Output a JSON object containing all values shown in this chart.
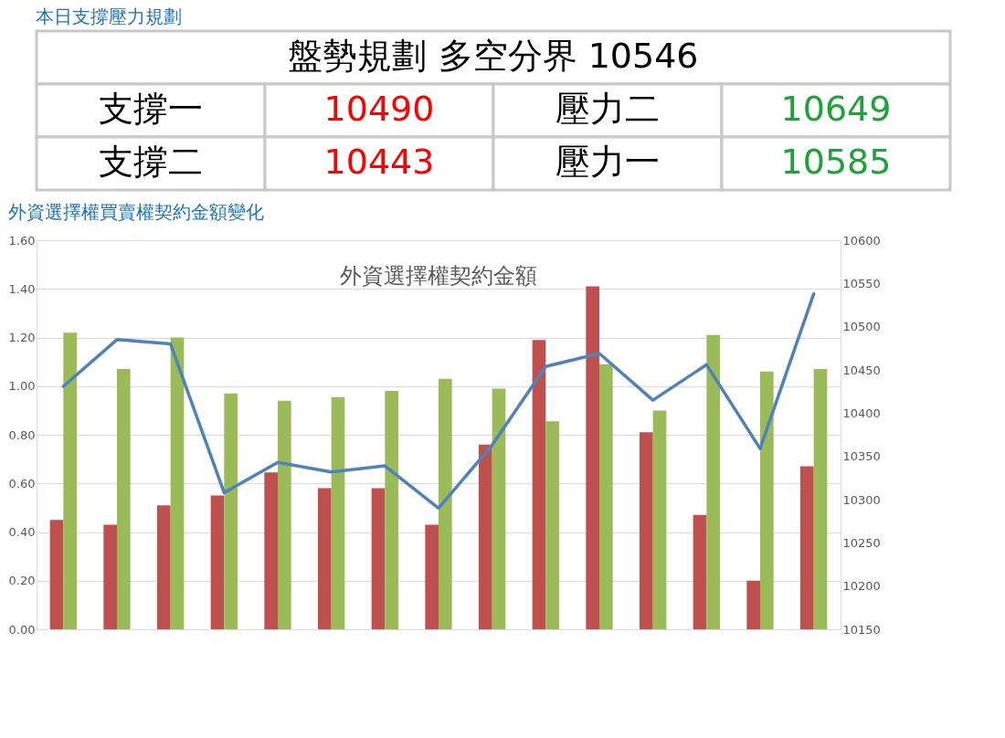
{
  "chart_data": [
    {
      "type": "other",
      "title": "本日支撐壓力規劃",
      "annotations": [
        "盤勢規劃 多空分界 10546",
        "支撐一",
        "10490",
        "壓力二",
        "10649",
        "支撐二",
        "10443",
        "壓力一",
        "10585"
      ],
      "colors": [
        "#000000",
        "#000000",
        "#ff0000",
        "#000000",
        "#1aa337",
        "#000000",
        "#ff0000",
        "#000000",
        "#1aa337"
      ]
    },
    {
      "type": "bar",
      "title": "外資選擇權買賣權契約金額變化",
      "subtitle": "外資選擇權契約金額",
      "categories": [
        null,
        null,
        null,
        null,
        null,
        null,
        null,
        null,
        null,
        null,
        null,
        null,
        null,
        null,
        null
      ],
      "series": [
        {
          "color": "#c0504d",
          "values": [
            0.45,
            0.43,
            0.51,
            0.55,
            0.645,
            0.58,
            0.58,
            0.43,
            0.76,
            1.19,
            1.41,
            0.81,
            0.47,
            0.2,
            0.67
          ]
        },
        {
          "color": "#9bbb59",
          "values": [
            1.22,
            1.07,
            1.2,
            0.97,
            0.94,
            0.955,
            0.98,
            1.03,
            0.99,
            0.855,
            1.09,
            0.9,
            1.21,
            1.06,
            1.07
          ]
        },
        {
          "type": "line",
          "axis": "y2",
          "color": "#4f81bd",
          "values": [
            10431,
            10485,
            10480,
            10308,
            10343,
            10332,
            10339,
            10290,
            10363,
            10454,
            10469,
            10415,
            10456,
            10359,
            10538
          ]
        }
      ],
      "ylim": [
        0,
        1.6
      ],
      "yticks": [
        {
          "value": 0,
          "label": "0.00"
        },
        {
          "value": 0.2,
          "label": "0.20"
        },
        {
          "value": 0.4,
          "label": "0.40"
        },
        {
          "value": 0.6,
          "label": "0.60"
        },
        {
          "value": 0.8,
          "label": "0.80"
        },
        {
          "value": 1.0,
          "label": "1.00"
        },
        {
          "value": 1.2,
          "label": "1.20"
        },
        {
          "value": 1.4,
          "label": "1.40"
        },
        {
          "value": 1.6,
          "label": "1.60"
        }
      ],
      "y2lim": [
        10150,
        10600
      ],
      "y2ticks": [
        10150,
        10200,
        10250,
        10300,
        10350,
        10400,
        10450,
        10500,
        10550,
        10600
      ],
      "grid": "y"
    }
  ]
}
